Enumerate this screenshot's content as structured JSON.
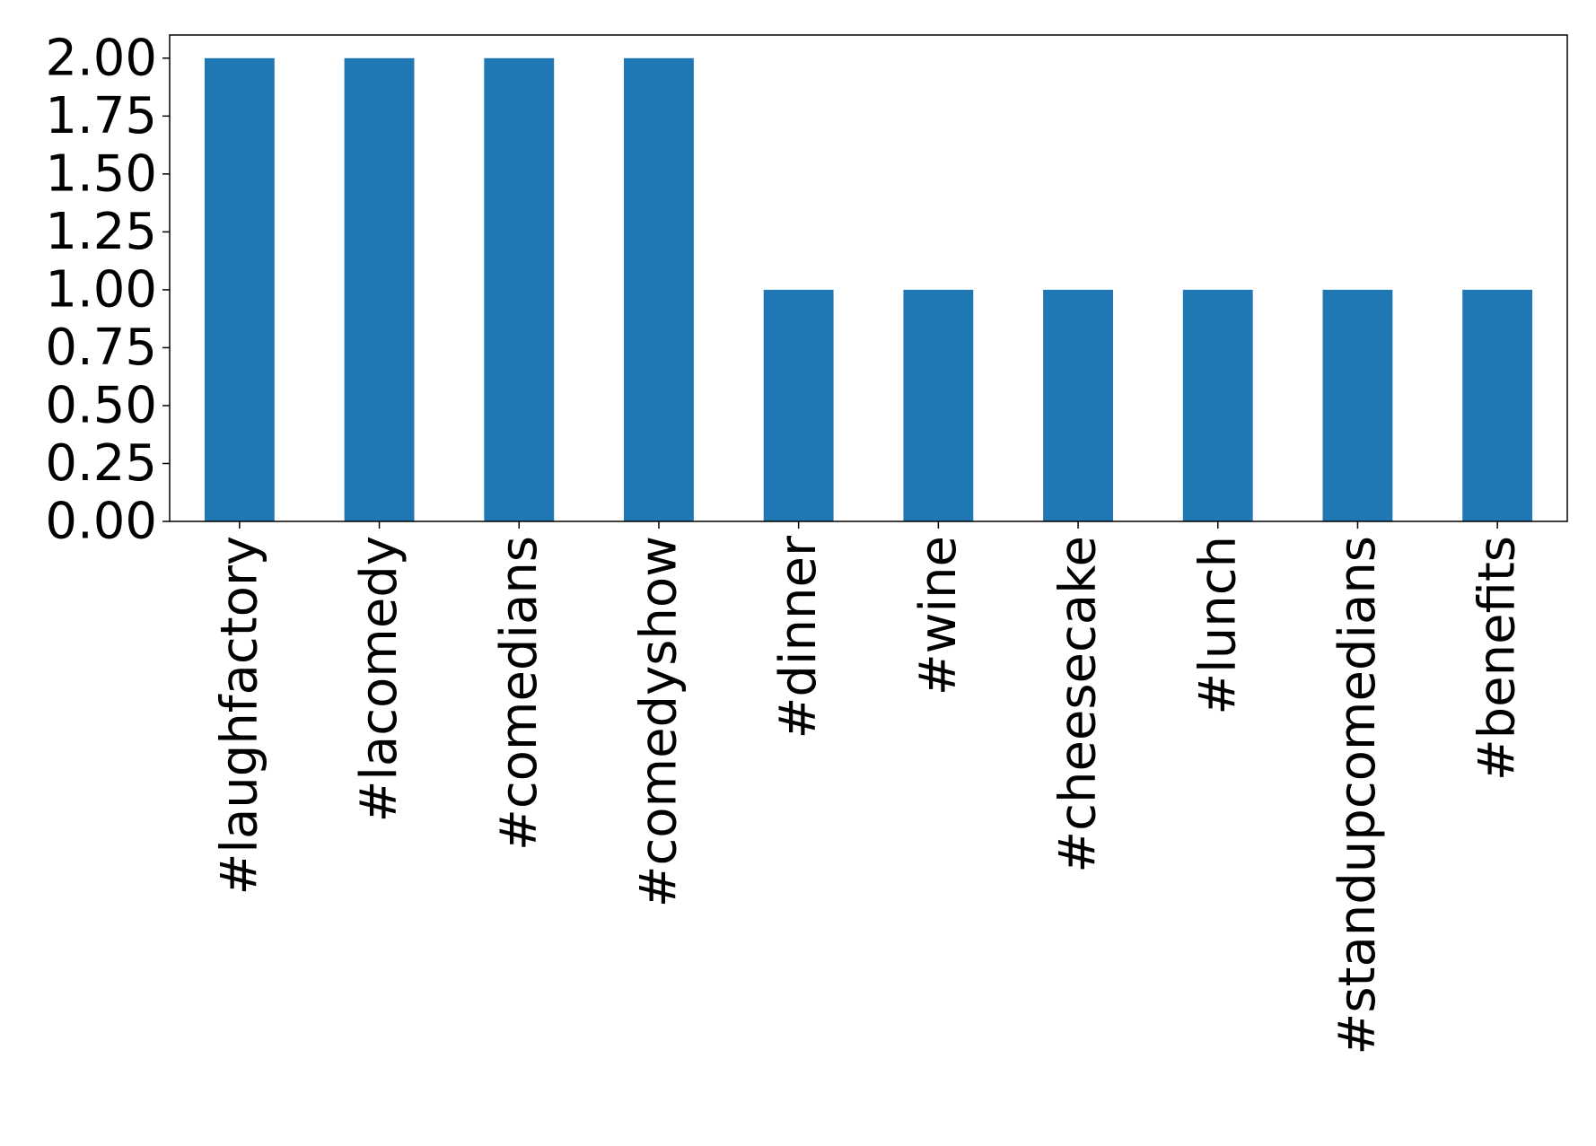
{
  "chart_data": {
    "type": "bar",
    "categories": [
      "#laughfactory",
      "#lacomedy",
      "#comedians",
      "#comedyshow",
      "#dinner",
      "#wine",
      "#cheesecake",
      "#lunch",
      "#standupcomedians",
      "#benefits"
    ],
    "values": [
      2,
      2,
      2,
      2,
      1,
      1,
      1,
      1,
      1,
      1
    ],
    "title": "",
    "xlabel": "",
    "ylabel": "",
    "ylim": [
      0,
      2.1
    ],
    "yticks": [
      "0.00",
      "0.25",
      "0.50",
      "0.75",
      "1.00",
      "1.25",
      "1.50",
      "1.75",
      "2.00"
    ],
    "bar_color": "#1f77b4",
    "grid": false,
    "legend": false
  }
}
